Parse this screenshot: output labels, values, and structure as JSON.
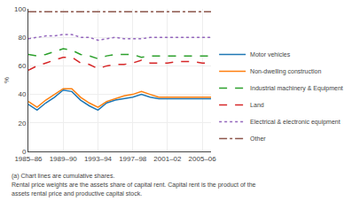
{
  "chart_data": {
    "type": "line",
    "x": [
      1985,
      1986,
      1987,
      1988,
      1989,
      1990,
      1991,
      1992,
      1993,
      1994,
      1995,
      1996,
      1997,
      1998,
      1999,
      2000,
      2001,
      2002,
      2003,
      2004,
      2005,
      2006
    ],
    "series": [
      {
        "name": "Motor vehicles",
        "line_style": "solid",
        "values": [
          33,
          29,
          34,
          38,
          43,
          42,
          36,
          32,
          29,
          34,
          36,
          37,
          38,
          40,
          38,
          37,
          37,
          37,
          37,
          37,
          37,
          37
        ]
      },
      {
        "name": "Non-dwelling construction",
        "line_style": "solid",
        "values": [
          35,
          31,
          36,
          40,
          44,
          44,
          38,
          34,
          31,
          35,
          37,
          39,
          40,
          42,
          40,
          38,
          38,
          38,
          38,
          38,
          38,
          38
        ]
      },
      {
        "name": "Industrial machinery & Equipment",
        "line_style": "dashed",
        "values": [
          68,
          67,
          68,
          70,
          72,
          71,
          68,
          67,
          65,
          67,
          68,
          68,
          68,
          66,
          67,
          67,
          67,
          67,
          67,
          67,
          67,
          67
        ]
      },
      {
        "name": "Land",
        "line_style": "dashed",
        "values": [
          57,
          60,
          62,
          64,
          66,
          66,
          62,
          61,
          58,
          60,
          61,
          61,
          62,
          64,
          62,
          62,
          62,
          63,
          63,
          63,
          62,
          62
        ]
      },
      {
        "name": "Electrical & electronic equipment",
        "line_style": "dotted",
        "values": [
          79,
          80,
          81,
          81,
          82,
          82,
          80,
          80,
          78,
          79,
          80,
          79,
          79,
          79,
          80,
          80,
          80,
          80,
          80,
          80,
          80,
          80
        ]
      },
      {
        "name": "Other",
        "line_style": "dashdot",
        "values": [
          98,
          98,
          98,
          98,
          98,
          98,
          98,
          98,
          98,
          98,
          98,
          98,
          98,
          98,
          98,
          98,
          98,
          98,
          98,
          98,
          98,
          98
        ]
      }
    ],
    "xlim": [
      1985,
      2006
    ],
    "xticks": [
      {
        "value": 1985,
        "label": "1985–86"
      },
      {
        "value": 1989,
        "label": "1989–90"
      },
      {
        "value": 1993,
        "label": "1993–94"
      },
      {
        "value": 1997,
        "label": "1997–98"
      },
      {
        "value": 2001,
        "label": "2001–02"
      },
      {
        "value": 2005,
        "label": "2005–06"
      }
    ],
    "ylim": [
      0,
      100
    ],
    "yticks": [
      0,
      20,
      40,
      60,
      80,
      100
    ],
    "ylabel": "%",
    "legend": "lower right",
    "annotations": [
      "(a) Chart lines are cumulative shares.",
      "Rental price weights are the assets share of capital rent. Capital rent is the product of the",
      "assets rental price and productive capital stock."
    ]
  }
}
